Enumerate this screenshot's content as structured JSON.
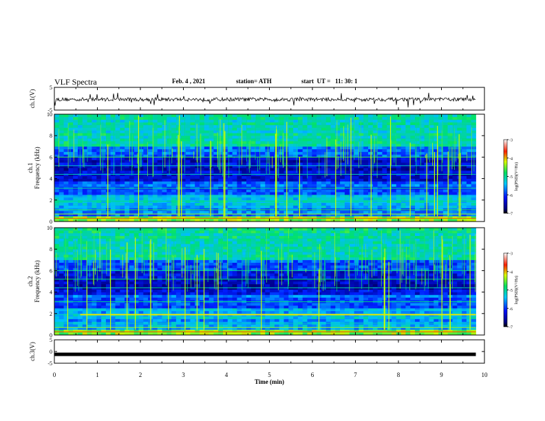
{
  "header": {
    "title": "VLF Spectra",
    "date": "Feb. 4 , 2021",
    "station": "station= ATH",
    "start": "start  UT =   11: 30: 1"
  },
  "chart_data": [
    {
      "type": "line",
      "ylabel": "ch.1(V)",
      "xlim": [
        0,
        10
      ],
      "ylim": [
        -5,
        5
      ],
      "yticks": [
        "5",
        "-5"
      ],
      "baseline_value": -0.3,
      "x_end": 9.8
    },
    {
      "type": "heatmap",
      "ylabel_line1": "ch.1",
      "ylabel_line2": "Frequency  (kHz)",
      "xlim": [
        0,
        10
      ],
      "ylim": [
        0,
        10
      ],
      "yticks": [
        "0",
        "2",
        "4",
        "6",
        "8",
        "10"
      ],
      "x_end": 9.8,
      "colorbar": {
        "label": "log(PSD)(V²/Hz)",
        "range": [
          -7,
          -3
        ],
        "ticks": [
          "-3",
          "-4",
          "-5",
          "-6",
          "-7"
        ]
      }
    },
    {
      "type": "heatmap",
      "ylabel_line1": "ch.2",
      "ylabel_line2": "Frequency  (kHz)",
      "xlim": [
        0,
        10
      ],
      "ylim": [
        0,
        10
      ],
      "yticks": [
        "0",
        "2",
        "4",
        "6",
        "8",
        "10"
      ],
      "x_end": 9.8,
      "colorbar": {
        "label": "log(PSD)(V²/Hz)",
        "range": [
          -7,
          -3
        ],
        "ticks": [
          "-3",
          "-4",
          "-5",
          "-6",
          "-7"
        ]
      }
    },
    {
      "type": "line",
      "ylabel": "ch.3(V)",
      "xlim": [
        0,
        10
      ],
      "ylim": [
        -5,
        5
      ],
      "yticks": [
        "5",
        "0",
        "-5"
      ],
      "baseline_value": -1.2,
      "x_end": 9.8
    }
  ],
  "x_axis": {
    "label": "Time  (min)",
    "ticks": [
      "0",
      "1",
      "2",
      "3",
      "4",
      "5",
      "6",
      "7",
      "8",
      "9",
      "10"
    ]
  }
}
